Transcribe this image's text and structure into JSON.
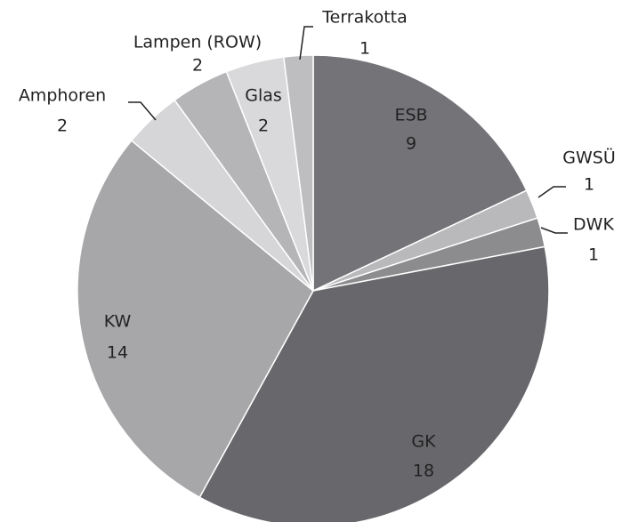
{
  "chart_data": {
    "type": "pie",
    "categories": [
      "ESB",
      "GWSÜ",
      "DWK",
      "GK",
      "KW",
      "Amphoren",
      "Lampen (ROW)",
      "Glas",
      "Terrakotta"
    ],
    "values": [
      9,
      1,
      1,
      18,
      14,
      2,
      2,
      2,
      1
    ],
    "colors": [
      "#747378",
      "#b9b9bb",
      "#8c8c8f",
      "#68676b",
      "#a7a7a9",
      "#d6d6d8",
      "#b5b5b7",
      "#d9d9db",
      "#bebec0"
    ]
  }
}
